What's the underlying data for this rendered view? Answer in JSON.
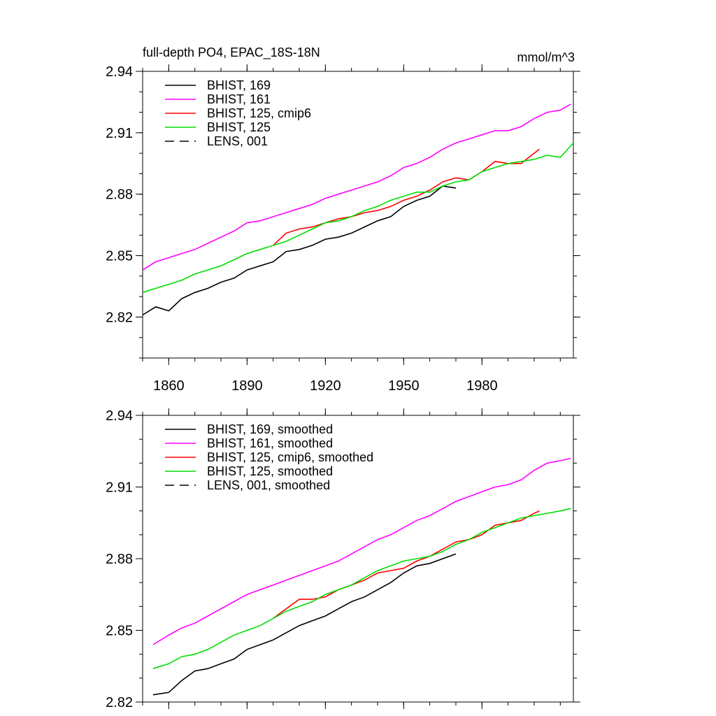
{
  "chart_data": [
    {
      "type": "line",
      "title": "full-depth PO4, EPAC_18S-18N",
      "units": "mmol/m^3",
      "xlabel": "",
      "ylabel": "",
      "xlim": [
        1850,
        2015
      ],
      "ylim": [
        2.8,
        2.94
      ],
      "yticks": [
        2.82,
        2.85,
        2.88,
        2.91,
        2.94
      ],
      "ytick_labels": [
        "2.82",
        "2.85",
        "2.88",
        "2.91",
        "2.94"
      ],
      "xticks": [
        1860,
        1890,
        1920,
        1950,
        1980
      ],
      "xtick_labels": [
        "1860",
        "1890",
        "1920",
        "1950",
        "1980"
      ],
      "grid": false,
      "legend_position": "top-left",
      "series": [
        {
          "name": "BHIST, 169",
          "color": "#000000",
          "dash": "solid",
          "x": [
            1850,
            1855,
            1860,
            1865,
            1870,
            1875,
            1880,
            1885,
            1890,
            1895,
            1900,
            1905,
            1910,
            1915,
            1920,
            1925,
            1930,
            1935,
            1940,
            1945,
            1950,
            1955,
            1960,
            1965,
            1970
          ],
          "y": [
            2.821,
            2.825,
            2.823,
            2.829,
            2.832,
            2.834,
            2.837,
            2.839,
            2.843,
            2.845,
            2.847,
            2.852,
            2.853,
            2.855,
            2.858,
            2.859,
            2.861,
            2.864,
            2.867,
            2.869,
            2.874,
            2.877,
            2.879,
            2.884,
            2.883
          ]
        },
        {
          "name": "BHIST, 161",
          "color": "#ff00ff",
          "dash": "solid",
          "x": [
            1850,
            1855,
            1860,
            1865,
            1870,
            1875,
            1880,
            1885,
            1890,
            1895,
            1900,
            1905,
            1910,
            1915,
            1920,
            1925,
            1930,
            1935,
            1940,
            1945,
            1950,
            1955,
            1960,
            1965,
            1970,
            1975,
            1980,
            1985,
            1990,
            1995,
            2000,
            2005,
            2010,
            2014
          ],
          "y": [
            2.843,
            2.847,
            2.849,
            2.851,
            2.853,
            2.856,
            2.859,
            2.862,
            2.866,
            2.867,
            2.869,
            2.871,
            2.873,
            2.875,
            2.878,
            2.88,
            2.882,
            2.884,
            2.886,
            2.889,
            2.893,
            2.895,
            2.898,
            2.902,
            2.905,
            2.907,
            2.909,
            2.911,
            2.911,
            2.913,
            2.917,
            2.92,
            2.921,
            2.924
          ]
        },
        {
          "name": "BHIST, 125, cmip6",
          "color": "#ff0000",
          "dash": "solid",
          "x": [
            1900,
            1905,
            1910,
            1915,
            1920,
            1925,
            1930,
            1935,
            1940,
            1945,
            1950,
            1955,
            1960,
            1965,
            1970,
            1975,
            1980,
            1985,
            1990,
            1995,
            2000,
            2002
          ],
          "y": [
            2.855,
            2.861,
            2.863,
            2.864,
            2.866,
            2.868,
            2.869,
            2.871,
            2.872,
            2.874,
            2.877,
            2.879,
            2.882,
            2.886,
            2.888,
            2.887,
            2.891,
            2.896,
            2.895,
            2.895,
            2.9,
            2.902
          ]
        },
        {
          "name": "BHIST, 125",
          "color": "#00dd00",
          "dash": "solid",
          "x": [
            1850,
            1855,
            1860,
            1865,
            1870,
            1875,
            1880,
            1885,
            1890,
            1895,
            1900,
            1905,
            1910,
            1915,
            1920,
            1925,
            1930,
            1935,
            1940,
            1945,
            1950,
            1955,
            1960,
            1965,
            1970,
            1975,
            1980,
            1985,
            1990,
            1995,
            2000,
            2005,
            2010,
            2015
          ],
          "y": [
            2.832,
            2.834,
            2.836,
            2.838,
            2.841,
            2.843,
            2.845,
            2.848,
            2.851,
            2.853,
            2.855,
            2.857,
            2.86,
            2.863,
            2.866,
            2.867,
            2.869,
            2.872,
            2.874,
            2.877,
            2.879,
            2.881,
            2.881,
            2.884,
            2.886,
            2.887,
            2.891,
            2.893,
            2.895,
            2.896,
            2.897,
            2.899,
            2.898,
            2.905
          ]
        }
      ]
    },
    {
      "type": "line",
      "title": "",
      "xlabel": "",
      "ylabel": "",
      "xlim": [
        1850,
        2015
      ],
      "ylim": [
        2.82,
        2.94
      ],
      "yticks": [
        2.82,
        2.85,
        2.88,
        2.91,
        2.94
      ],
      "ytick_labels": [
        "2.82",
        "2.85",
        "2.88",
        "2.91",
        "2.94"
      ],
      "xticks": [
        1860,
        1890,
        1920,
        1950,
        1980
      ],
      "xtick_labels": [],
      "grid": false,
      "legend_position": "top-left",
      "series": [
        {
          "name": "BHIST, 169, smoothed",
          "color": "#000000",
          "dash": "solid",
          "x": [
            1854,
            1860,
            1865,
            1870,
            1875,
            1880,
            1885,
            1890,
            1895,
            1900,
            1905,
            1910,
            1915,
            1920,
            1925,
            1930,
            1935,
            1940,
            1945,
            1950,
            1955,
            1960,
            1965,
            1970
          ],
          "y": [
            2.823,
            2.824,
            2.829,
            2.833,
            2.834,
            2.836,
            2.838,
            2.842,
            2.844,
            2.846,
            2.849,
            2.852,
            2.854,
            2.856,
            2.859,
            2.862,
            2.864,
            2.867,
            2.87,
            2.874,
            2.877,
            2.878,
            2.88,
            2.882
          ]
        },
        {
          "name": "BHIST, 161, smoothed",
          "color": "#ff00ff",
          "dash": "solid",
          "x": [
            1854,
            1860,
            1865,
            1870,
            1875,
            1880,
            1885,
            1890,
            1895,
            1900,
            1905,
            1910,
            1915,
            1920,
            1925,
            1930,
            1935,
            1940,
            1945,
            1950,
            1955,
            1960,
            1965,
            1970,
            1975,
            1980,
            1985,
            1990,
            1995,
            2000,
            2005,
            2010,
            2014
          ],
          "y": [
            2.844,
            2.848,
            2.851,
            2.853,
            2.856,
            2.859,
            2.862,
            2.865,
            2.867,
            2.869,
            2.871,
            2.873,
            2.875,
            2.877,
            2.879,
            2.882,
            2.885,
            2.888,
            2.89,
            2.893,
            2.896,
            2.898,
            2.901,
            2.904,
            2.906,
            2.908,
            2.91,
            2.911,
            2.913,
            2.917,
            2.92,
            2.921,
            2.922
          ]
        },
        {
          "name": "BHIST, 125, cmip6, smoothed",
          "color": "#ff0000",
          "dash": "solid",
          "x": [
            1900,
            1905,
            1910,
            1915,
            1920,
            1925,
            1930,
            1935,
            1940,
            1945,
            1950,
            1955,
            1960,
            1965,
            1970,
            1975,
            1980,
            1985,
            1990,
            1995,
            2000,
            2002
          ],
          "y": [
            2.855,
            2.859,
            2.863,
            2.863,
            2.864,
            2.867,
            2.869,
            2.871,
            2.874,
            2.875,
            2.876,
            2.879,
            2.881,
            2.884,
            2.887,
            2.888,
            2.89,
            2.894,
            2.895,
            2.896,
            2.899,
            2.9
          ]
        },
        {
          "name": "BHIST, 125, smoothed",
          "color": "#00dd00",
          "dash": "solid",
          "x": [
            1854,
            1860,
            1865,
            1870,
            1875,
            1880,
            1885,
            1890,
            1895,
            1900,
            1905,
            1910,
            1915,
            1920,
            1925,
            1930,
            1935,
            1940,
            1945,
            1950,
            1955,
            1960,
            1965,
            1970,
            1975,
            1980,
            1985,
            1990,
            1995,
            2000,
            2005,
            2010,
            2014
          ],
          "y": [
            2.834,
            2.836,
            2.839,
            2.84,
            2.842,
            2.845,
            2.848,
            2.85,
            2.852,
            2.855,
            2.858,
            2.86,
            2.862,
            2.865,
            2.867,
            2.869,
            2.872,
            2.875,
            2.877,
            2.879,
            2.88,
            2.881,
            2.883,
            2.886,
            2.888,
            2.891,
            2.893,
            2.895,
            2.897,
            2.898,
            2.899,
            2.9,
            2.901
          ]
        }
      ]
    }
  ],
  "legends": [
    {
      "entries": [
        {
          "label": "BHIST, 169",
          "color": "#000000",
          "dash": "solid"
        },
        {
          "label": "BHIST, 161",
          "color": "#ff00ff",
          "dash": "solid"
        },
        {
          "label": "BHIST, 125, cmip6",
          "color": "#ff0000",
          "dash": "solid"
        },
        {
          "label": "BHIST, 125",
          "color": "#00dd00",
          "dash": "solid"
        },
        {
          "label": "LENS, 001",
          "color": "#000000",
          "dash": "dashed"
        }
      ]
    },
    {
      "entries": [
        {
          "label": "BHIST, 169, smoothed",
          "color": "#000000",
          "dash": "solid"
        },
        {
          "label": "BHIST, 161, smoothed",
          "color": "#ff00ff",
          "dash": "solid"
        },
        {
          "label": "BHIST, 125, cmip6, smoothed",
          "color": "#ff0000",
          "dash": "solid"
        },
        {
          "label": "BHIST, 125, smoothed",
          "color": "#00dd00",
          "dash": "solid"
        },
        {
          "label": "LENS, 001, smoothed",
          "color": "#000000",
          "dash": "dashed"
        }
      ]
    }
  ]
}
